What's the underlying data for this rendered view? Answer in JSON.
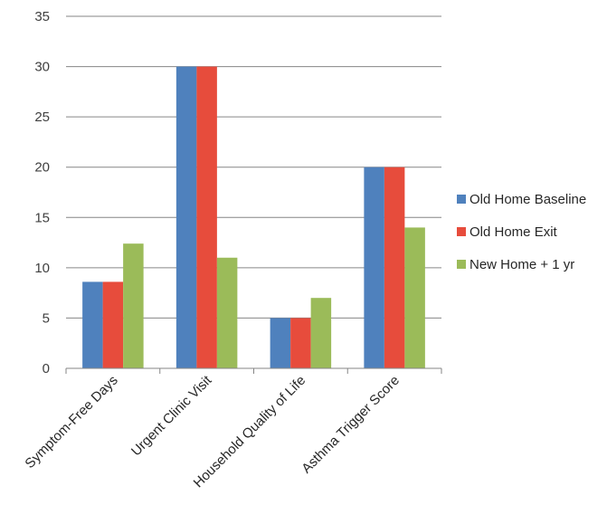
{
  "chart_data": {
    "type": "bar",
    "title": "",
    "xlabel": "",
    "ylabel": "",
    "ylim": [
      0,
      35
    ],
    "yticks": [
      0,
      5,
      10,
      15,
      20,
      25,
      30,
      35
    ],
    "grid": true,
    "legend_position": "right",
    "categories": [
      "Symptom-Free Days",
      "Urgent Clinic Visit",
      "Household Quality of Life",
      "Asthma Trigger Score"
    ],
    "series": [
      {
        "name": "Old Home Baseline",
        "color": "#4f81bd",
        "values": [
          8.6,
          30,
          5,
          20
        ]
      },
      {
        "name": "Old Home Exit",
        "color": "#e74c3c",
        "values": [
          8.6,
          30,
          5,
          20
        ]
      },
      {
        "name": "New Home + 1 yr",
        "color": "#9bbb59",
        "values": [
          12.4,
          11,
          7,
          14
        ]
      }
    ]
  }
}
